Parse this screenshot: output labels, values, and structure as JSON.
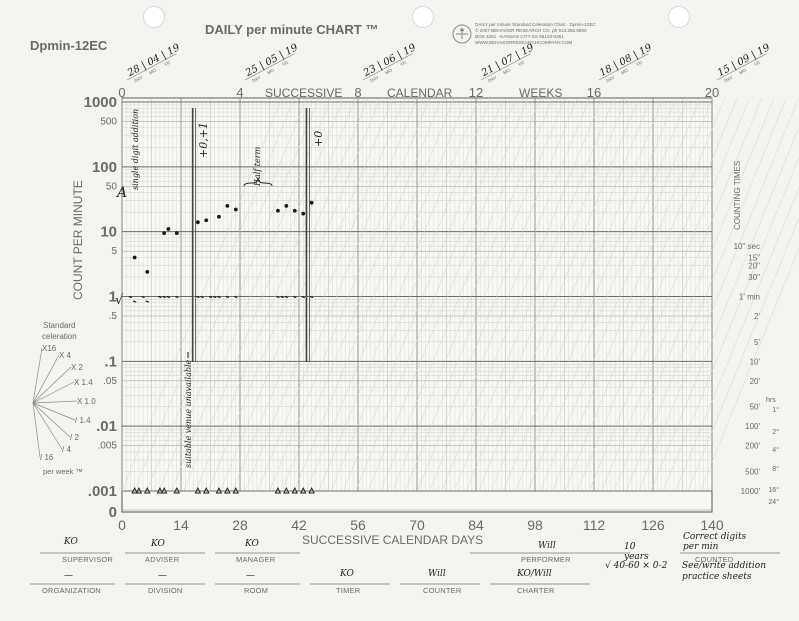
{
  "header": {
    "chart_id": "Dpmin-12EC",
    "title": "DAILY per minute CHART ™",
    "publisher_lines": [
      "DAILY per minute Standard Celeration Chart · Dpmin-12EC",
      "© 2007 BEHAVIOR RESEARCH CO. ph 913.362.5900",
      "BOX 3351 · KANSAS CITY KS 66103-0351",
      "WWW.BEHAVIORRESEARCHCOMPANY.COM"
    ]
  },
  "top_axis": {
    "label_successive": "SUCCESSIVE",
    "label_calendar": "CALENDAR",
    "label_weeks": "WEEKS",
    "week_ticks": [
      "0",
      "4",
      "8",
      "12",
      "16",
      "20"
    ],
    "day_letters": [
      "M",
      "W",
      "F",
      "SUN"
    ],
    "date_headers": [
      {
        "text": "28 | 04 | 19",
        "week": 0
      },
      {
        "text": "25 | 05 | 19",
        "week": 4
      },
      {
        "text": "23 | 06 | 19",
        "week": 8
      },
      {
        "text": "21 | 07 | 19",
        "week": 12
      },
      {
        "text": "18 | 08 | 19",
        "week": 16
      },
      {
        "text": "15 | 09 | 19",
        "week": 20
      }
    ],
    "date_sublabels": [
      "DAY",
      "MO",
      "YR"
    ]
  },
  "left_axis": {
    "label": "COUNT PER MINUTE",
    "ticks": [
      "1000",
      "500",
      "100",
      "50",
      "10",
      "5",
      "1",
      ".5",
      ".1",
      ".05",
      ".01",
      ".005",
      ".001",
      "0"
    ]
  },
  "right_axis": {
    "label": "COUNTING TIMES",
    "times": [
      "10\" sec",
      "15\"",
      "20\"",
      "30\"",
      "1' min",
      "2'",
      "5'",
      "10'",
      "20'",
      "50'",
      "100'",
      "200'",
      "500'",
      "1000'"
    ],
    "hrs_label": "hrs",
    "hrs": [
      "1°",
      "2°",
      "4°",
      "8°",
      "16°",
      "24°"
    ]
  },
  "bottom_axis": {
    "label": "SUCCESSIVE CALENDAR DAYS",
    "ticks": [
      "0",
      "14",
      "28",
      "42",
      "56",
      "70",
      "84",
      "98",
      "112",
      "126",
      "140"
    ]
  },
  "celeration": {
    "title_line1": "Standard",
    "title_line2": "celeration",
    "fan": [
      "X16",
      "X 4",
      "X 2",
      "X 1.4",
      "X 1.0",
      "/ 1.4",
      "/ 2",
      "/ 4",
      "/ 16"
    ],
    "footer": "per week ™"
  },
  "annotations": {
    "left_marker_a": "A",
    "left_marker_check": "√",
    "single_digit": "single digit addition",
    "plus_zero_plus_one": "+0,+1",
    "half_term": "Half term",
    "plus_zero": "+0",
    "venue": "suitable venue unavailable"
  },
  "form": {
    "row1": [
      {
        "label": "SUPERVISOR",
        "value": "KO"
      },
      {
        "label": "ADVISER",
        "value": "KO"
      },
      {
        "label": "MANAGER",
        "value": "KO"
      },
      {
        "label": "PERFORMER",
        "value": "Will"
      },
      {
        "label": "",
        "value": "10 years"
      },
      {
        "label": "COUNTED",
        "value": "Correct digits per min"
      }
    ],
    "row2": [
      {
        "label": "ORGANIZATION",
        "value": "—"
      },
      {
        "label": "DIVISION",
        "value": "—"
      },
      {
        "label": "ROOM",
        "value": "—"
      },
      {
        "label": "TIMER",
        "value": "KO"
      },
      {
        "label": "COUNTER",
        "value": "Will"
      },
      {
        "label": "CHARTER",
        "value": "KO/Will"
      },
      {
        "label": "",
        "value": "√ 40-60  × 0-2"
      },
      {
        "label": "",
        "value": "See/write addition practice sheets"
      }
    ]
  },
  "chart_data": {
    "type": "scatter",
    "title": "DAILY per minute CHART ™",
    "xlabel": "SUCCESSIVE CALENDAR DAYS",
    "ylabel": "COUNT PER MINUTE",
    "xlim": [
      0,
      140
    ],
    "ylim": [
      0.001,
      1000
    ],
    "yscale": "log",
    "phase_lines_days": [
      17,
      44
    ],
    "series": [
      {
        "marker": "dot",
        "x": [
          3,
          6,
          10,
          11,
          13,
          18,
          20,
          23,
          25,
          27,
          37,
          39,
          41,
          43,
          45
        ],
        "y": [
          4,
          2.4,
          9.5,
          11,
          9.5,
          14,
          15,
          17,
          25,
          22,
          21,
          25,
          21,
          19,
          28
        ]
      },
      {
        "marker": "dash",
        "x": [
          2,
          3,
          5,
          6,
          9,
          10,
          11,
          13,
          18,
          19,
          21,
          22,
          23,
          25,
          27,
          37,
          38,
          39,
          41,
          43,
          45
        ],
        "y": [
          1,
          0.85,
          1,
          0.85,
          1,
          1,
          1,
          1,
          1,
          1,
          1,
          1,
          1,
          1,
          1,
          1,
          1,
          1,
          1,
          1,
          1
        ]
      },
      {
        "marker": "triangle",
        "x": [
          3,
          4,
          6,
          9,
          10,
          13,
          18,
          20,
          23,
          25,
          27,
          37,
          39,
          41,
          43,
          45
        ],
        "y": [
          0.001,
          0.001,
          0.001,
          0.001,
          0.001,
          0.001,
          0.001,
          0.001,
          0.001,
          0.001,
          0.001,
          0.001,
          0.001,
          0.001,
          0.001,
          0.001
        ]
      }
    ]
  }
}
